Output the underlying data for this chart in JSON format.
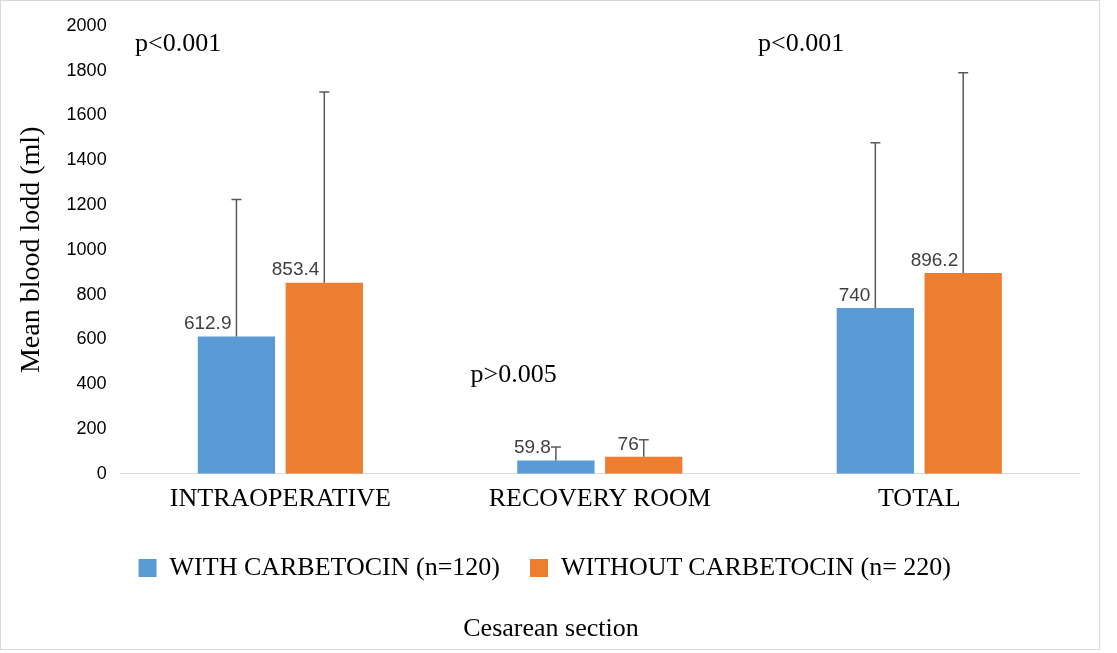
{
  "chart_data": {
    "type": "bar",
    "ylabel": "Mean blood lodd (ml)",
    "xlabel": "Cesarean section",
    "categories": [
      "INTRAOPERATIVE",
      "RECOVERY ROOM",
      "TOTAL"
    ],
    "series": [
      {
        "name": "WITH CARBETOCIN (n=120)",
        "color": "#5b9bd5",
        "values": [
          612.9,
          59.8,
          740
        ],
        "errors": [
          [
            612.9,
            1225
          ],
          [
            59.8,
            120
          ],
          [
            740,
            1478
          ]
        ]
      },
      {
        "name": "WITHOUT CARBETOCIN (n= 220)",
        "color": "#ed7d31",
        "values": [
          853.4,
          76,
          896.2
        ],
        "errors": [
          [
            853.4,
            1705
          ],
          [
            76,
            152
          ],
          [
            896.2,
            1790
          ]
        ]
      }
    ],
    "data_labels": true,
    "ylim": [
      0,
      2000
    ],
    "yticks": [
      0,
      200,
      400,
      600,
      800,
      1000,
      1200,
      1400,
      1600,
      1800,
      2000
    ],
    "grid": false,
    "legend": "bottom",
    "annotations": [
      "p<0.001",
      "p>0.005",
      "p<0.001"
    ]
  }
}
